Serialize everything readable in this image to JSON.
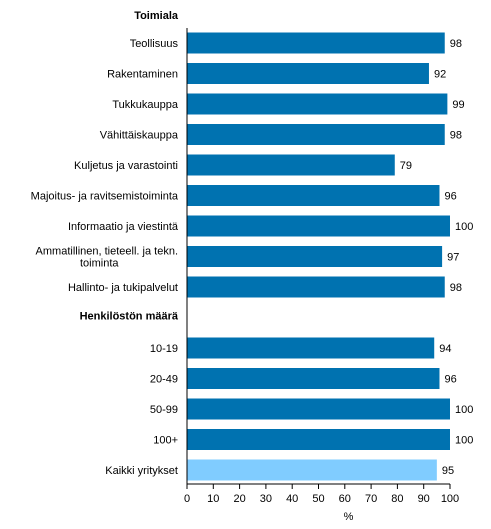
{
  "chart_data": {
    "type": "bar",
    "orientation": "horizontal",
    "groups": [
      {
        "label": "Toimiala",
        "items": [
          {
            "label": [
              "Teollisuus"
            ],
            "value": 98,
            "highlight": false
          },
          {
            "label": [
              "Rakentaminen"
            ],
            "value": 92,
            "highlight": false
          },
          {
            "label": [
              "Tukkukauppa"
            ],
            "value": 99,
            "highlight": false
          },
          {
            "label": [
              "Vähittäiskauppa"
            ],
            "value": 98,
            "highlight": false
          },
          {
            "label": [
              "Kuljetus ja varastointi"
            ],
            "value": 79,
            "highlight": false
          },
          {
            "label": [
              "Majoitus- ja ravitsemistoiminta"
            ],
            "value": 96,
            "highlight": false
          },
          {
            "label": [
              "Informaatio ja viestintä"
            ],
            "value": 100,
            "highlight": false
          },
          {
            "label": [
              "Ammatillinen, tieteell. ja tekn.",
              "toiminta"
            ],
            "value": 97,
            "highlight": false
          },
          {
            "label": [
              "Hallinto- ja tukipalvelut"
            ],
            "value": 98,
            "highlight": false
          }
        ]
      },
      {
        "label": "Henkilöstön määrä",
        "items": [
          {
            "label": [
              "10-19"
            ],
            "value": 94,
            "highlight": false
          },
          {
            "label": [
              "20-49"
            ],
            "value": 96,
            "highlight": false
          },
          {
            "label": [
              "50-99"
            ],
            "value": 100,
            "highlight": false
          },
          {
            "label": [
              "100+"
            ],
            "value": 100,
            "highlight": false
          },
          {
            "label": [
              "Kaikki yritykset"
            ],
            "value": 95,
            "highlight": true
          }
        ]
      }
    ],
    "xlabel": "%",
    "xlim": [
      0,
      100
    ],
    "xticks": [
      0,
      10,
      20,
      30,
      40,
      50,
      60,
      70,
      80,
      90,
      100
    ],
    "grid": false,
    "colors": {
      "bar": "#0072b0",
      "highlight_bar": "#80ccff",
      "axis": "#000000"
    }
  }
}
